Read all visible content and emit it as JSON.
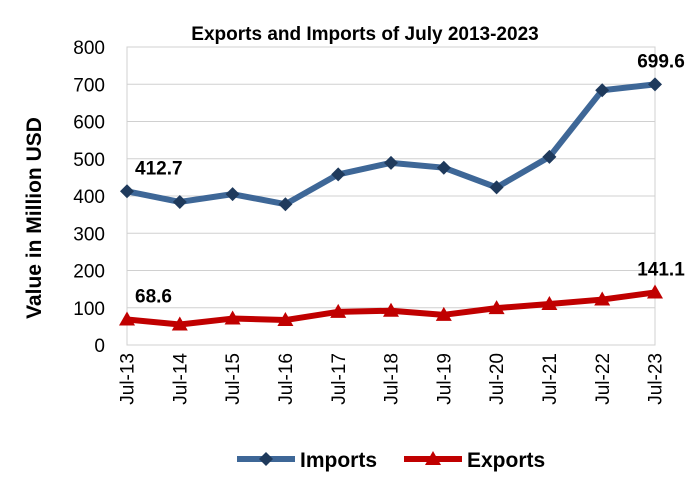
{
  "chart_data": {
    "type": "line",
    "title": "Exports and Imports of July 2013-2023",
    "xlabel": "",
    "ylabel": "Value in  Million  USD",
    "ylim": [
      0,
      800
    ],
    "yticks": [
      0,
      100,
      200,
      300,
      400,
      500,
      600,
      700,
      800
    ],
    "grid": true,
    "legend_position": "bottom",
    "categories": [
      "Jul-13",
      "Jul-14",
      "Jul-15",
      "Jul-16",
      "Jul-17",
      "Jul-18",
      "Jul-19",
      "Jul-20",
      "Jul-21",
      "Jul-22",
      "Jul-23"
    ],
    "series": [
      {
        "name": "Imports",
        "color": "#3E6797",
        "marker": "diamond",
        "values": [
          412.7,
          384,
          405,
          378,
          458,
          489,
          476,
          423,
          505,
          684,
          699.6
        ],
        "data_labels": [
          {
            "index": 0,
            "text": "412.7"
          },
          {
            "index": 10,
            "text": "699.6"
          }
        ]
      },
      {
        "name": "Exports",
        "color": "#C00000",
        "marker": "triangle",
        "values": [
          68.6,
          55,
          71,
          67,
          89,
          92,
          81,
          99,
          110,
          122,
          141.1
        ],
        "data_labels": [
          {
            "index": 0,
            "text": "68.6"
          },
          {
            "index": 10,
            "text": "141.1"
          }
        ]
      }
    ]
  }
}
